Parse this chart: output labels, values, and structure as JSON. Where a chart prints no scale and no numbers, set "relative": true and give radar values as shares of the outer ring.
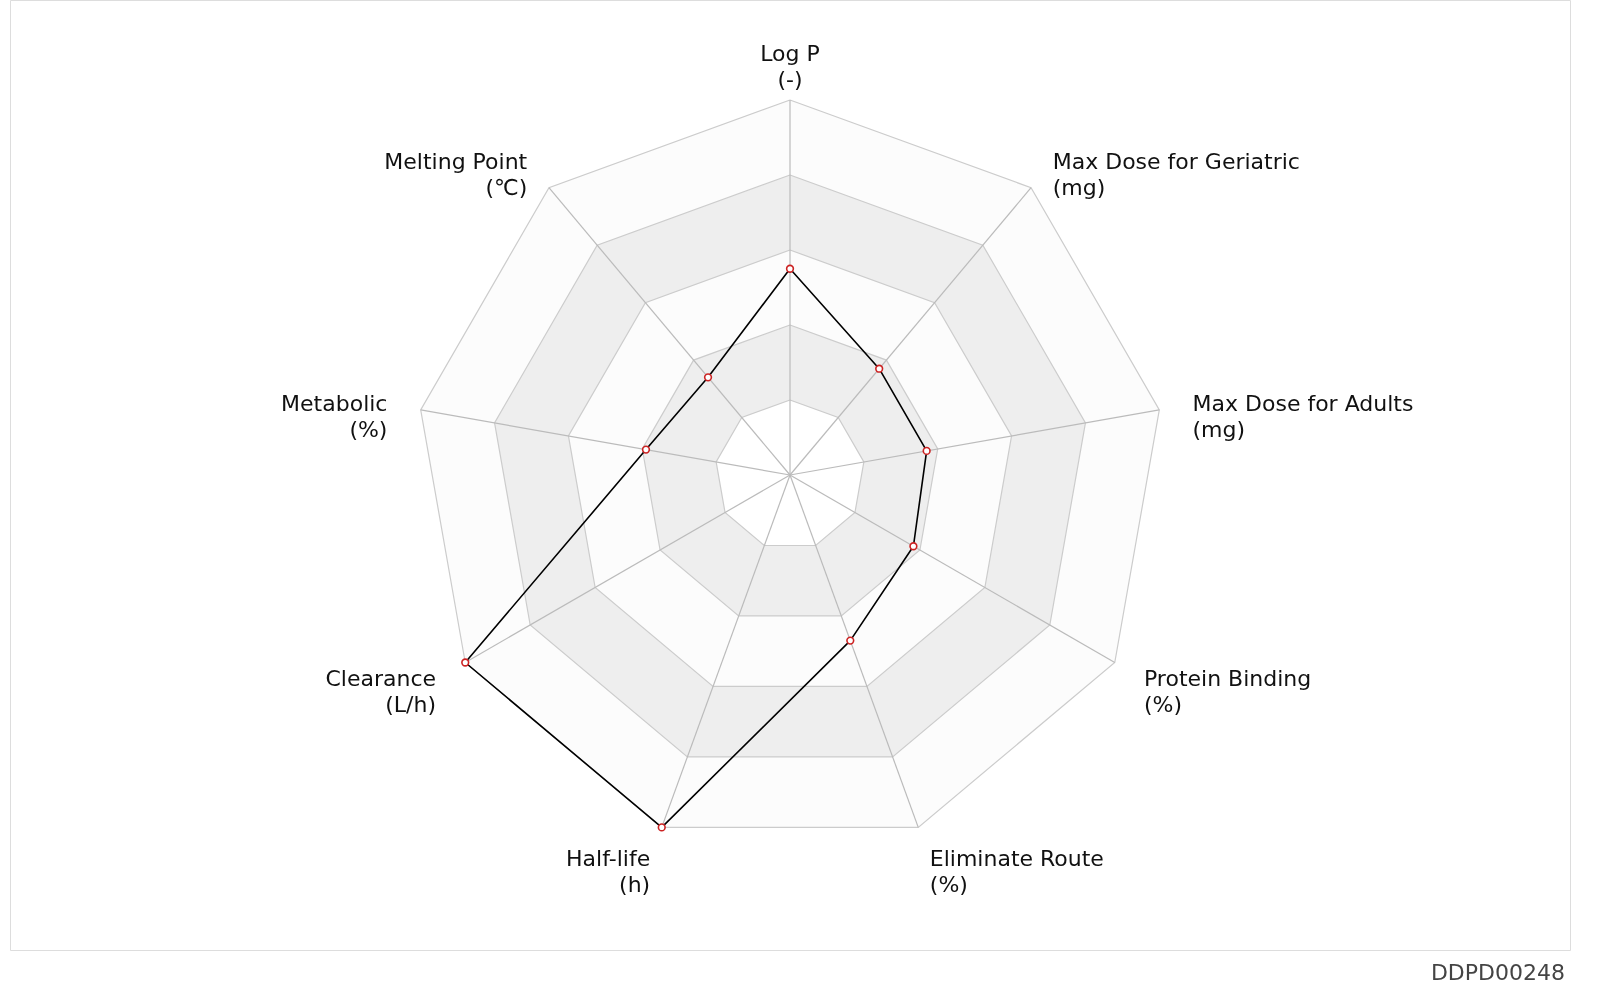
{
  "chart_data": {
    "type": "radar",
    "relative": true,
    "grid": true,
    "marker": "circle",
    "line_style": "solid",
    "categories": [
      "Log P\n(-)",
      "Max Dose for Geriatric\n(mg)",
      "Max Dose for Adults\n(mg)",
      "Protein Binding\n(%)",
      "Eliminate Route\n(%)",
      "Half-life\n(h)",
      "Clearance\n(L/h)",
      "Metabolic\n(%)",
      "Melting Point\n(℃)"
    ],
    "series": [
      {
        "color": "#000000",
        "values": [
          0.55,
          0.37,
          0.37,
          0.38,
          0.47,
          1.0,
          1.0,
          0.39,
          0.34
        ]
      }
    ],
    "annotations": [
      "DDPD00248"
    ]
  }
}
